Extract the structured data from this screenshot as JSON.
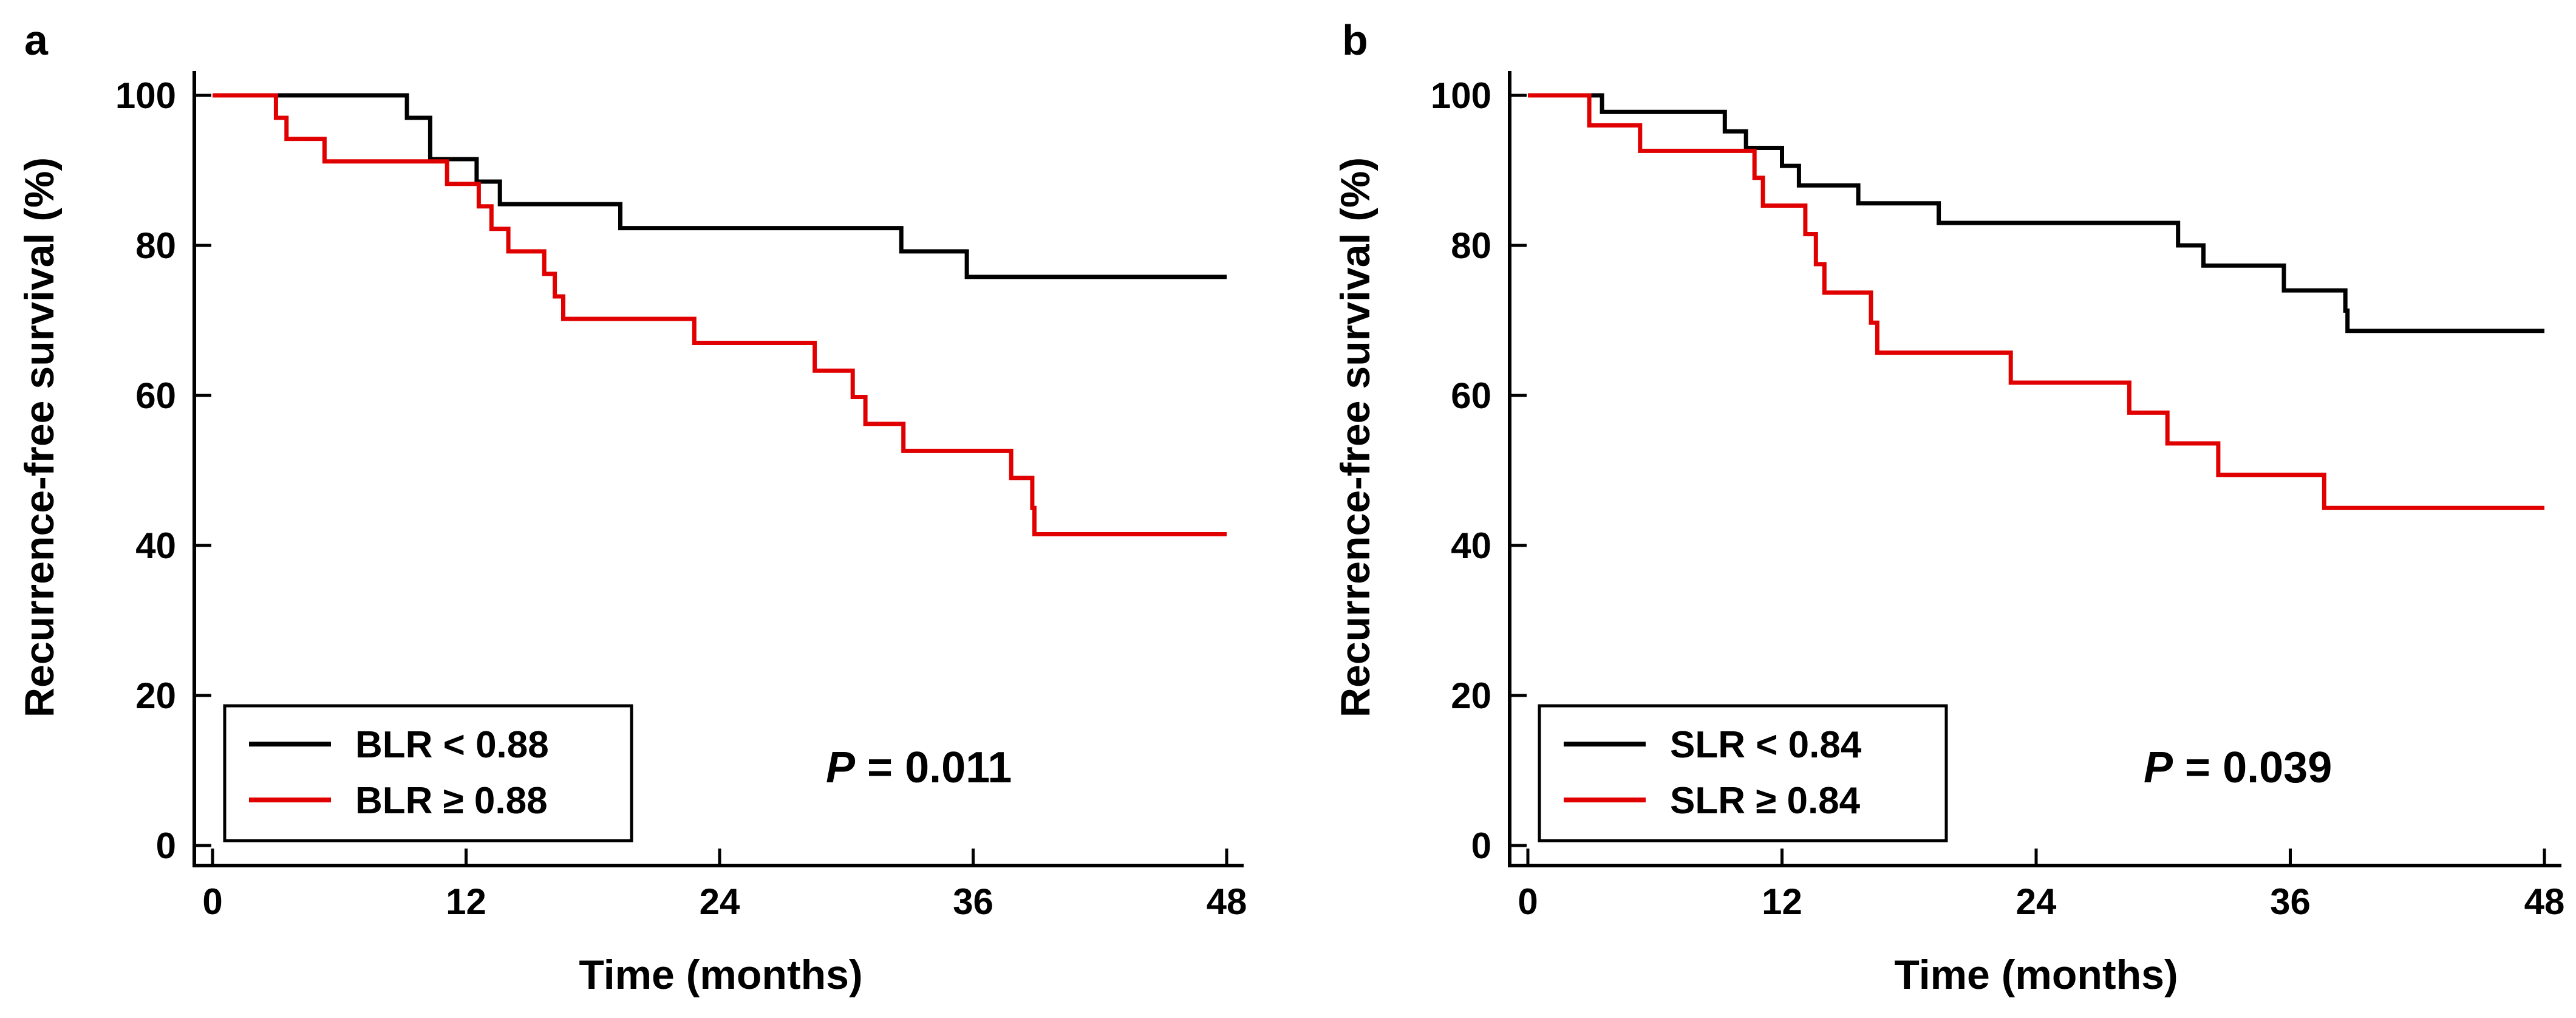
{
  "chart_data": [
    {
      "type": "line",
      "panel_label": "a",
      "title": "",
      "xlabel": "Time (months)",
      "ylabel": "Recurrence-free survival (%)",
      "xlim": [
        0,
        48
      ],
      "ylim": [
        0,
        100
      ],
      "xticks": [
        0,
        12,
        24,
        36,
        48
      ],
      "yticks": [
        0,
        20,
        40,
        60,
        80,
        100
      ],
      "grid": false,
      "legend_placement": "bottom-left",
      "annotation": {
        "letter": "P",
        "text": " = 0.011"
      },
      "series": [
        {
          "name": "BLR < 0.88",
          "color": "#000000",
          "step": true,
          "points": [
            [
              0,
              100
            ],
            [
              9.2,
              100
            ],
            [
              9.2,
              97
            ],
            [
              10.3,
              97
            ],
            [
              10.3,
              91.5
            ],
            [
              12.5,
              91.5
            ],
            [
              12.5,
              88.5
            ],
            [
              13.6,
              88.5
            ],
            [
              13.6,
              85.5
            ],
            [
              19.3,
              85.5
            ],
            [
              19.3,
              82.3
            ],
            [
              32.6,
              82.3
            ],
            [
              32.6,
              79.2
            ],
            [
              35.7,
              79.2
            ],
            [
              35.7,
              75.8
            ],
            [
              48,
              75.8
            ]
          ]
        },
        {
          "name": "BLR ≥ 0.88",
          "color": "#e00000",
          "step": true,
          "points": [
            [
              0,
              100
            ],
            [
              3,
              100
            ],
            [
              3,
              97
            ],
            [
              3.5,
              97
            ],
            [
              3.5,
              94.2
            ],
            [
              5.3,
              94.2
            ],
            [
              5.3,
              91.2
            ],
            [
              11.1,
              91.2
            ],
            [
              11.1,
              88.2
            ],
            [
              12.6,
              88.2
            ],
            [
              12.6,
              85.2
            ],
            [
              13.2,
              85.2
            ],
            [
              13.2,
              82.2
            ],
            [
              14,
              82.2
            ],
            [
              14,
              79.2
            ],
            [
              15.7,
              79.2
            ],
            [
              15.7,
              76.2
            ],
            [
              16.2,
              76.2
            ],
            [
              16.2,
              73.2
            ],
            [
              16.6,
              73.2
            ],
            [
              16.6,
              70.2
            ],
            [
              22.8,
              70.2
            ],
            [
              22.8,
              67
            ],
            [
              28.5,
              67
            ],
            [
              28.5,
              63.3
            ],
            [
              30.3,
              63.3
            ],
            [
              30.3,
              59.8
            ],
            [
              30.9,
              59.8
            ],
            [
              30.9,
              56.2
            ],
            [
              32.7,
              56.2
            ],
            [
              32.7,
              52.6
            ],
            [
              37.8,
              52.6
            ],
            [
              37.8,
              49
            ],
            [
              38.8,
              49
            ],
            [
              38.8,
              45
            ],
            [
              38.9,
              45
            ],
            [
              38.9,
              41.5
            ],
            [
              48,
              41.5
            ]
          ]
        }
      ]
    },
    {
      "type": "line",
      "panel_label": "b",
      "title": "",
      "xlabel": "Time (months)",
      "ylabel": "Recurrence-free survival (%)",
      "xlim": [
        0,
        48
      ],
      "ylim": [
        0,
        100
      ],
      "xticks": [
        0,
        12,
        24,
        36,
        48
      ],
      "yticks": [
        0,
        20,
        40,
        60,
        80,
        100
      ],
      "grid": false,
      "legend_placement": "bottom-left",
      "annotation": {
        "letter": "P",
        "text": " = 0.039"
      },
      "series": [
        {
          "name": "SLR < 0.84",
          "color": "#000000",
          "step": true,
          "points": [
            [
              0,
              100
            ],
            [
              3.5,
              100
            ],
            [
              3.5,
              97.8
            ],
            [
              9.3,
              97.8
            ],
            [
              9.3,
              95.2
            ],
            [
              10.3,
              95.2
            ],
            [
              10.3,
              93
            ],
            [
              12,
              93
            ],
            [
              12,
              90.6
            ],
            [
              12.8,
              90.6
            ],
            [
              12.8,
              88
            ],
            [
              15.6,
              88
            ],
            [
              15.6,
              85.6
            ],
            [
              19.4,
              85.6
            ],
            [
              19.4,
              83
            ],
            [
              30.7,
              83
            ],
            [
              30.7,
              80
            ],
            [
              31.9,
              80
            ],
            [
              31.9,
              77.3
            ],
            [
              35.7,
              77.3
            ],
            [
              35.7,
              74
            ],
            [
              38.6,
              74
            ],
            [
              38.6,
              71.3
            ],
            [
              38.7,
              71.3
            ],
            [
              38.7,
              68.6
            ],
            [
              48,
              68.6
            ]
          ]
        },
        {
          "name": "SLR ≥ 0.84",
          "color": "#e00000",
          "step": true,
          "points": [
            [
              0,
              100
            ],
            [
              2.9,
              100
            ],
            [
              2.9,
              96
            ],
            [
              5.3,
              96
            ],
            [
              5.3,
              92.6
            ],
            [
              10.7,
              92.6
            ],
            [
              10.7,
              89
            ],
            [
              11.1,
              89
            ],
            [
              11.1,
              85.3
            ],
            [
              13.1,
              85.3
            ],
            [
              13.1,
              81.5
            ],
            [
              13.6,
              81.5
            ],
            [
              13.6,
              77.5
            ],
            [
              14,
              77.5
            ],
            [
              14,
              73.7
            ],
            [
              16.2,
              73.7
            ],
            [
              16.2,
              69.7
            ],
            [
              16.5,
              69.7
            ],
            [
              16.5,
              65.7
            ],
            [
              22.8,
              65.7
            ],
            [
              22.8,
              61.7
            ],
            [
              28.4,
              61.7
            ],
            [
              28.4,
              57.7
            ],
            [
              30.2,
              57.7
            ],
            [
              30.2,
              53.6
            ],
            [
              32.6,
              53.6
            ],
            [
              32.6,
              49.4
            ],
            [
              37.6,
              49.4
            ],
            [
              37.6,
              45
            ],
            [
              48,
              45
            ]
          ]
        }
      ]
    }
  ]
}
